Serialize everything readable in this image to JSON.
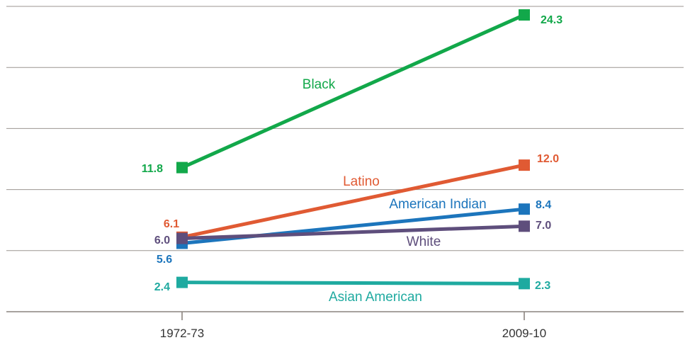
{
  "chart_data": {
    "type": "line",
    "title": "",
    "xlabel": "",
    "ylabel": "",
    "categories": [
      "1972-73",
      "2009-10"
    ],
    "ylim": [
      0,
      25
    ],
    "grid": true,
    "legend": "inline labels",
    "series": [
      {
        "name": "Black",
        "values": [
          11.8,
          24.3
        ],
        "labels": [
          "11.8",
          "24.3"
        ],
        "color": "#12a84a"
      },
      {
        "name": "Latino",
        "values": [
          6.1,
          12.0
        ],
        "labels": [
          "6.1",
          "12.0"
        ],
        "color": "#e05a33"
      },
      {
        "name": "American Indian",
        "values": [
          5.6,
          8.4
        ],
        "labels": [
          "5.6",
          "8.4"
        ],
        "color": "#1c75bc"
      },
      {
        "name": "White",
        "values": [
          6.0,
          7.0
        ],
        "labels": [
          "6.0",
          "7.0"
        ],
        "color": "#5e4e7c"
      },
      {
        "name": "Asian American",
        "values": [
          2.4,
          2.3
        ],
        "labels": [
          "2.4",
          "2.3"
        ],
        "color": "#1faaa0"
      }
    ]
  }
}
